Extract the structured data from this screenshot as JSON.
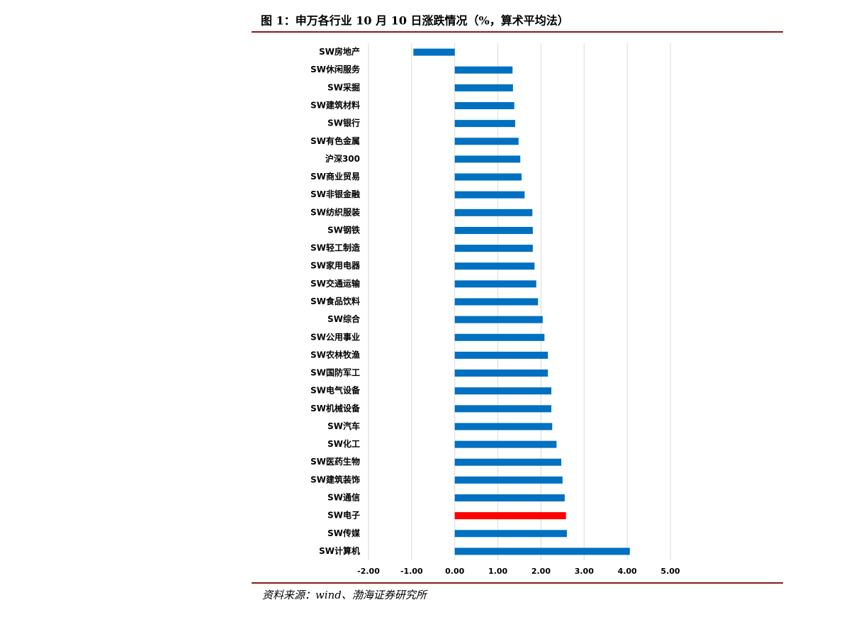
{
  "chart_data": {
    "type": "hbar",
    "title": "图 1：申万各行业 10 月 10 日涨跌情况（%，算术平均法）",
    "source": "资料来源：wind、渤海证券研究所",
    "categories": [
      "SW房地产",
      "SW休闲服务",
      "SW采掘",
      "SW建筑材料",
      "SW银行",
      "SW有色金属",
      "沪深300",
      "SW商业贸易",
      "SW非银金融",
      "SW纺织服装",
      "SW钢铁",
      "SW轻工制造",
      "SW家用电器",
      "SW交通运输",
      "SW食品饮料",
      "SW综合",
      "SW公用事业",
      "SW农林牧渔",
      "SW国防军工",
      "SW电气设备",
      "SW机械设备",
      "SW汽车",
      "SW化工",
      "SW医药生物",
      "SW建筑装饰",
      "SW通信",
      "SW电子",
      "SW传媒",
      "SW计算机"
    ],
    "values": [
      -0.96,
      1.34,
      1.35,
      1.38,
      1.4,
      1.48,
      1.52,
      1.55,
      1.62,
      1.8,
      1.81,
      1.81,
      1.85,
      1.89,
      1.93,
      2.04,
      2.08,
      2.16,
      2.16,
      2.24,
      2.24,
      2.26,
      2.36,
      2.47,
      2.5,
      2.55,
      2.58,
      2.6,
      4.06
    ],
    "bar_colors": [
      "#0070c0",
      "#0070c0",
      "#0070c0",
      "#0070c0",
      "#0070c0",
      "#0070c0",
      "#0070c0",
      "#0070c0",
      "#0070c0",
      "#0070c0",
      "#0070c0",
      "#0070c0",
      "#0070c0",
      "#0070c0",
      "#0070c0",
      "#0070c0",
      "#0070c0",
      "#0070c0",
      "#0070c0",
      "#0070c0",
      "#0070c0",
      "#0070c0",
      "#0070c0",
      "#0070c0",
      "#0070c0",
      "#0070c0",
      "#ff0000",
      "#0070c0",
      "#0070c0"
    ],
    "xlim": [
      -2,
      5
    ],
    "xticks": [
      {
        "value": -2,
        "label": "-2.00"
      },
      {
        "value": -1,
        "label": "-1.00"
      },
      {
        "value": 0,
        "label": "0.00"
      },
      {
        "value": 1,
        "label": "1.00"
      },
      {
        "value": 2,
        "label": "2.00"
      },
      {
        "value": 3,
        "label": "3.00"
      },
      {
        "value": 4,
        "label": "4.00"
      },
      {
        "value": 5,
        "label": "5.00"
      }
    ],
    "grid": true
  }
}
